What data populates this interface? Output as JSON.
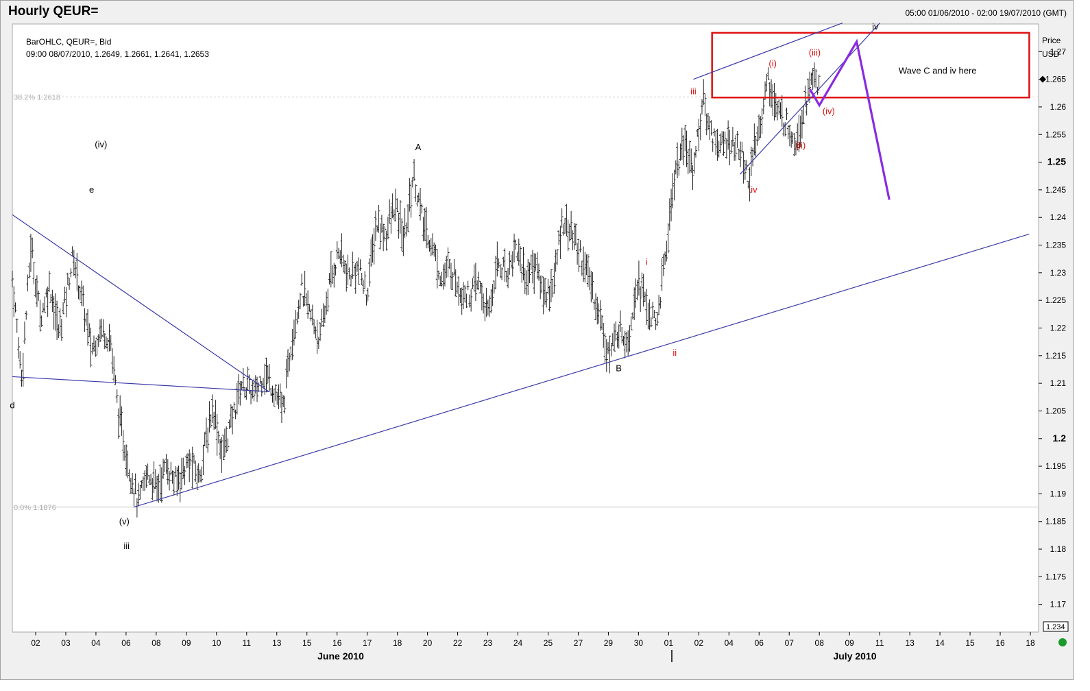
{
  "header": {
    "title": "Hourly QEUR=",
    "date_range": "05:00 01/06/2010 - 02:00 19/07/2010 (GMT)"
  },
  "info": {
    "line1": "BarOHLC, QEUR=, Bid",
    "line2": "09:00 08/07/2010, 1.2649, 1.2661, 1.2641, 1.2653"
  },
  "axis": {
    "price_label": "Price",
    "currency": "USD",
    "last_marker": "1.265",
    "crosshair_readout": "1.234"
  },
  "chart_data": {
    "type": "bar",
    "title": "Hourly QEUR=",
    "ylabel": "Price USD",
    "ylim": [
      1.165,
      1.275
    ],
    "y_ticks": [
      "1.17",
      "1.175",
      "1.18",
      "1.185",
      "1.19",
      "1.195",
      "1.2",
      "1.205",
      "1.21",
      "1.215",
      "1.22",
      "1.225",
      "1.23",
      "1.235",
      "1.24",
      "1.245",
      "1.25",
      "1.255",
      "1.26",
      "1.265",
      "1.27"
    ],
    "y_ticks_bold": [
      "1.2",
      "1.25"
    ],
    "x_ticks": [
      "02",
      "03",
      "04",
      "06",
      "08",
      "09",
      "10",
      "11",
      "13",
      "15",
      "16",
      "17",
      "18",
      "20",
      "22",
      "23",
      "24",
      "25",
      "27",
      "29",
      "30",
      "01",
      "02",
      "04",
      "06",
      "07",
      "08",
      "09",
      "11",
      "13",
      "14",
      "15",
      "16",
      "18"
    ],
    "month_labels": [
      "June 2010",
      "July 2010"
    ],
    "fib_levels": [
      {
        "label": "38.2%",
        "value": "1.2618",
        "price": 1.2618
      },
      {
        "label": "0.0%",
        "value": "1.1876",
        "price": 1.1876
      }
    ],
    "path": [
      [
        0,
        1.229
      ],
      [
        2,
        1.211
      ],
      [
        4,
        1.235
      ],
      [
        6,
        1.222
      ],
      [
        8,
        1.228
      ],
      [
        10,
        1.219
      ],
      [
        13,
        1.233
      ],
      [
        15,
        1.225
      ],
      [
        17,
        1.216
      ],
      [
        19,
        1.22
      ],
      [
        21,
        1.218
      ],
      [
        23,
        1.203
      ],
      [
        25,
        1.195
      ],
      [
        27,
        1.188
      ],
      [
        29,
        1.194
      ],
      [
        31,
        1.191
      ],
      [
        33,
        1.195
      ],
      [
        35,
        1.192
      ],
      [
        38,
        1.196
      ],
      [
        40,
        1.193
      ],
      [
        43,
        1.206
      ],
      [
        45,
        1.197
      ],
      [
        47,
        1.203
      ],
      [
        49,
        1.21
      ],
      [
        52,
        1.208
      ],
      [
        54,
        1.212
      ],
      [
        56,
        1.209
      ],
      [
        58,
        1.205
      ],
      [
        60,
        1.219
      ],
      [
        62,
        1.227
      ],
      [
        64,
        1.222
      ],
      [
        66,
        1.218
      ],
      [
        68,
        1.228
      ],
      [
        70,
        1.234
      ],
      [
        72,
        1.229
      ],
      [
        74,
        1.231
      ],
      [
        76,
        1.226
      ],
      [
        78,
        1.239
      ],
      [
        80,
        1.237
      ],
      [
        82,
        1.242
      ],
      [
        84,
        1.236
      ],
      [
        86,
        1.248
      ],
      [
        88,
        1.239
      ],
      [
        90,
        1.235
      ],
      [
        92,
        1.229
      ],
      [
        94,
        1.231
      ],
      [
        96,
        1.227
      ],
      [
        98,
        1.226
      ],
      [
        100,
        1.228
      ],
      [
        102,
        1.222
      ],
      [
        104,
        1.232
      ],
      [
        106,
        1.23
      ],
      [
        108,
        1.235
      ],
      [
        110,
        1.229
      ],
      [
        112,
        1.232
      ],
      [
        114,
        1.226
      ],
      [
        116,
        1.228
      ],
      [
        118,
        1.24
      ],
      [
        120,
        1.237
      ],
      [
        122,
        1.233
      ],
      [
        124,
        1.228
      ],
      [
        126,
        1.222
      ],
      [
        128,
        1.215
      ],
      [
        130,
        1.22
      ],
      [
        132,
        1.218
      ],
      [
        134,
        1.229
      ],
      [
        136,
        1.224
      ],
      [
        138,
        1.22
      ],
      [
        140,
        1.233
      ],
      [
        142,
        1.248
      ],
      [
        144,
        1.253
      ],
      [
        146,
        1.249
      ],
      [
        148,
        1.261
      ],
      [
        150,
        1.255
      ],
      [
        152,
        1.253
      ],
      [
        154,
        1.254
      ],
      [
        156,
        1.252
      ],
      [
        158,
        1.247
      ],
      [
        160,
        1.256
      ],
      [
        162,
        1.265
      ],
      [
        164,
        1.259
      ],
      [
        166,
        1.257
      ],
      [
        168,
        1.254
      ],
      [
        170,
        1.261
      ],
      [
        172,
        1.266
      ],
      [
        173,
        1.263
      ]
    ],
    "trendlines": [
      {
        "x1": 0,
        "y1": 1.2405,
        "x2": 55,
        "y2": 1.2085,
        "color": "#3a3aa8"
      },
      {
        "x1": 0,
        "y1": 1.2112,
        "x2": 55,
        "y2": 1.2085,
        "color": "#3a3aa8"
      },
      {
        "x1": 26,
        "y1": 1.1876,
        "x2": 218,
        "y2": 1.237,
        "color": "#3a3aa8"
      },
      {
        "x1": 156,
        "y1": 1.2478,
        "x2": 186,
        "y2": 1.2752,
        "color": "#3a3aa8"
      },
      {
        "x1": 146,
        "y1": 1.265,
        "x2": 178,
        "y2": 1.2752,
        "color": "#3a3aa8"
      }
    ],
    "box": {
      "x1": 150,
      "x2": 218,
      "y1": 1.2617,
      "y2": 1.2734,
      "color": "#e01010"
    },
    "projection": {
      "color": "#8a2be2",
      "points": [
        [
          171,
          1.2632
        ],
        [
          173,
          1.2603
        ],
        [
          181,
          1.2718
        ],
        [
          188,
          1.2432
        ]
      ]
    },
    "wave_labels": [
      {
        "text": "(iv)",
        "x": 19,
        "price": 1.2527,
        "color": "#000"
      },
      {
        "text": "e",
        "x": 17,
        "price": 1.2445,
        "color": "#000"
      },
      {
        "text": "d",
        "x": 0,
        "price": 1.2055,
        "color": "#000"
      },
      {
        "text": "(v)",
        "x": 24,
        "price": 1.1845,
        "color": "#000"
      },
      {
        "text": "iii",
        "x": 24.5,
        "price": 1.18,
        "color": "#000"
      },
      {
        "text": "A",
        "x": 87,
        "price": 1.2522,
        "color": "#000"
      },
      {
        "text": "B",
        "x": 130,
        "price": 1.2122,
        "color": "#000"
      },
      {
        "text": "i",
        "x": 136,
        "price": 1.2314,
        "color": "#e01010"
      },
      {
        "text": "ii",
        "x": 142,
        "price": 1.215,
        "color": "#e01010"
      },
      {
        "text": "iii",
        "x": 146,
        "price": 1.2623,
        "color": "#e01010"
      },
      {
        "text": "iv",
        "x": 159,
        "price": 1.2445,
        "color": "#e01010"
      },
      {
        "text": "(i)",
        "x": 163,
        "price": 1.2673,
        "color": "#e01010"
      },
      {
        "text": "(ii)",
        "x": 169,
        "price": 1.2525,
        "color": "#e01010"
      },
      {
        "text": "(iii)",
        "x": 172,
        "price": 1.2693,
        "color": "#e01010"
      },
      {
        "text": "(iv)",
        "x": 175,
        "price": 1.2587,
        "color": "#e01010"
      },
      {
        "text": "iv",
        "x": 185,
        "price": 1.274,
        "color": "#000"
      }
    ],
    "annotation": {
      "text": "Wave C and iv here",
      "x": 190,
      "price": 1.266
    }
  }
}
